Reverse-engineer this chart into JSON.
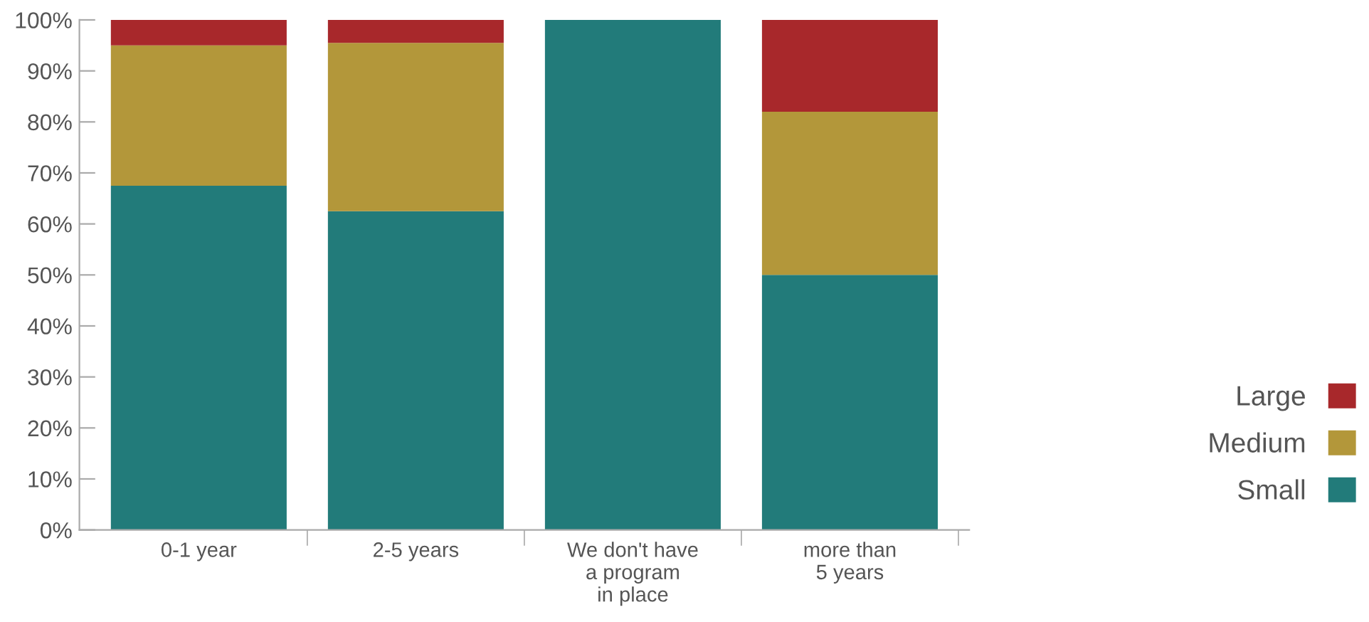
{
  "chart_data": {
    "type": "bar",
    "stacked": true,
    "categories": [
      "0-1 year",
      "2-5 years",
      "We don't have\na program\nin place",
      "more than\n5 years"
    ],
    "series": [
      {
        "name": "Small",
        "color": "#227b7a",
        "values": [
          67.5,
          62.5,
          100,
          50
        ]
      },
      {
        "name": "Medium",
        "color": "#b3973a",
        "values": [
          27.5,
          33,
          0,
          32
        ]
      },
      {
        "name": "Large",
        "color": "#a8282b",
        "values": [
          5,
          4.5,
          0,
          18
        ]
      }
    ],
    "ylim": [
      0,
      100
    ],
    "yticks": [
      {
        "value": 0,
        "label": "0%"
      },
      {
        "value": 10,
        "label": "10%"
      },
      {
        "value": 20,
        "label": "20%"
      },
      {
        "value": 30,
        "label": "30%"
      },
      {
        "value": 40,
        "label": "40%"
      },
      {
        "value": 50,
        "label": "50%"
      },
      {
        "value": 60,
        "label": "60%"
      },
      {
        "value": 70,
        "label": "70%"
      },
      {
        "value": 80,
        "label": "80%"
      },
      {
        "value": 90,
        "label": "90%"
      },
      {
        "value": 100,
        "label": "100%"
      }
    ],
    "grid": false,
    "legend": "right"
  }
}
